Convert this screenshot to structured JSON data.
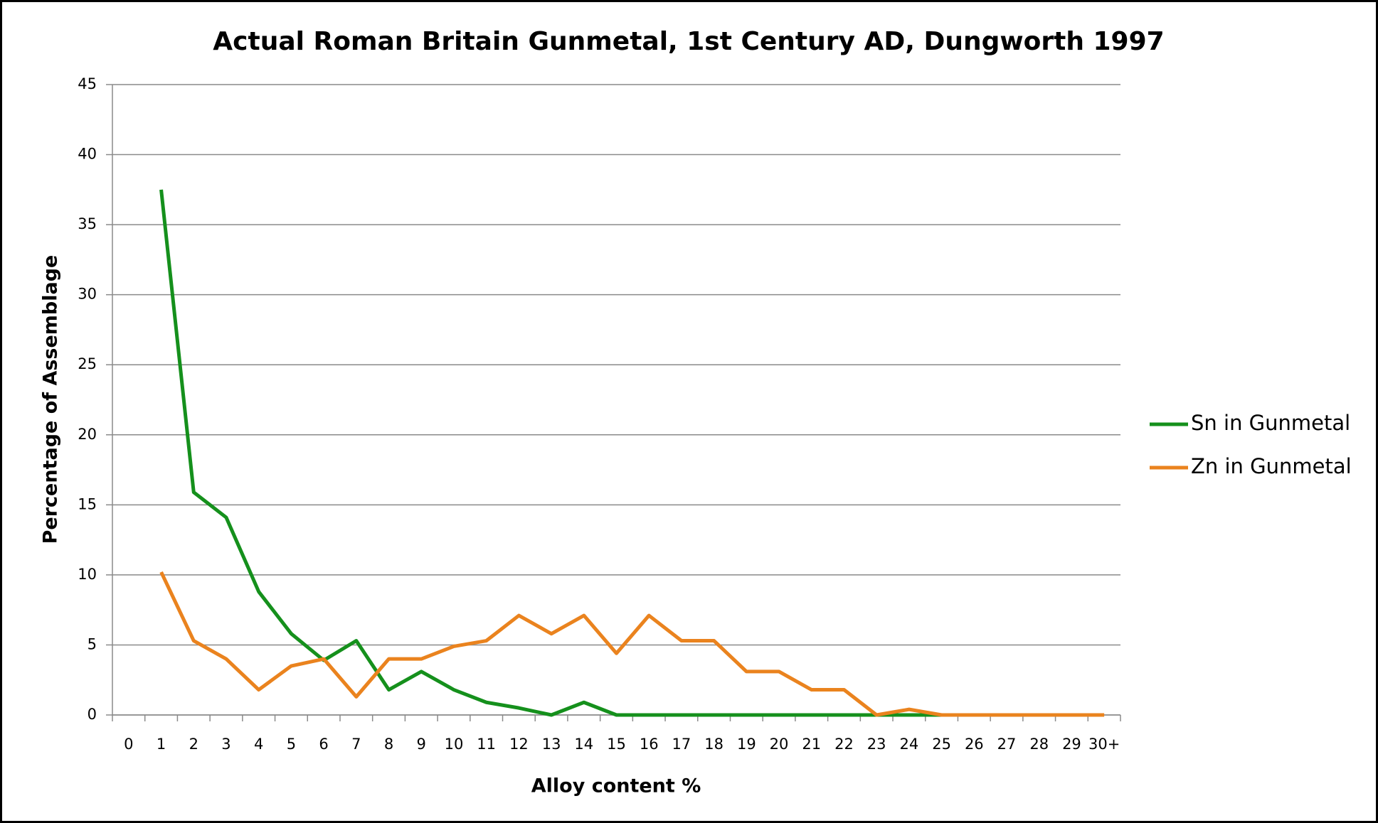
{
  "chart_data": {
    "type": "line",
    "title": "Actual Roman Britain Gunmetal, 1st Century AD, Dungworth 1997",
    "x_label": "Alloy content %",
    "y_label": "Percentage of Assemblage",
    "categories": [
      "0",
      "1",
      "2",
      "3",
      "4",
      "5",
      "6",
      "7",
      "8",
      "9",
      "10",
      "11",
      "12",
      "13",
      "14",
      "15",
      "16",
      "17",
      "18",
      "19",
      "20",
      "21",
      "22",
      "23",
      "24",
      "25",
      "26",
      "27",
      "28",
      "29",
      "30+"
    ],
    "series": [
      {
        "name": "Sn in Gunmetal",
        "color": "#15901c",
        "values": [
          null,
          37.5,
          15.9,
          14.1,
          8.8,
          5.8,
          3.9,
          5.3,
          1.8,
          3.1,
          1.8,
          0.9,
          0.5,
          0,
          0.9,
          0,
          0,
          0,
          0,
          0,
          0,
          0,
          0,
          0,
          0,
          0,
          null,
          null,
          null,
          null,
          null
        ]
      },
      {
        "name": "Zn in Gunmetal",
        "color": "#ea831e",
        "values": [
          null,
          10.2,
          5.3,
          4.0,
          1.8,
          3.5,
          4.0,
          1.3,
          4.0,
          4.0,
          4.9,
          5.3,
          7.1,
          5.8,
          7.1,
          4.4,
          7.1,
          5.3,
          5.3,
          3.1,
          3.1,
          1.8,
          1.8,
          0,
          0.4,
          0,
          0,
          0,
          0,
          0,
          0
        ]
      }
    ],
    "ylim": [
      0,
      45
    ],
    "yticks": [
      0,
      5,
      10,
      15,
      20,
      25,
      30,
      35,
      40,
      45
    ],
    "grid": true,
    "legend": "right"
  }
}
